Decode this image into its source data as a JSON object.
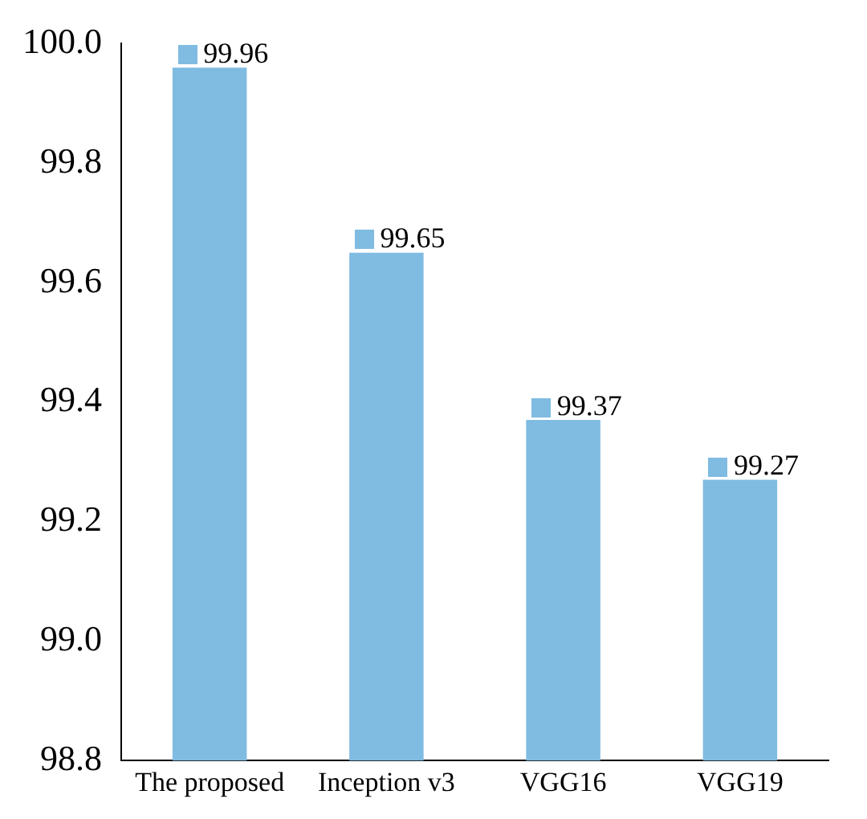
{
  "chart_data": {
    "type": "bar",
    "categories": [
      "The proposed",
      "Inception v3",
      "VGG16",
      "VGG19"
    ],
    "values": [
      99.96,
      99.65,
      99.37,
      99.27
    ],
    "color": "#80bbe2",
    "ylim": [
      98.8,
      100.0
    ],
    "yticks": [
      {
        "value": 98.8,
        "label": "98.8"
      },
      {
        "value": 99.0,
        "label": "99.0"
      },
      {
        "value": 99.2,
        "label": "99.2"
      },
      {
        "value": 99.4,
        "label": "99.4"
      },
      {
        "value": 99.6,
        "label": "99.6"
      },
      {
        "value": 99.8,
        "label": "99.8"
      },
      {
        "value": 100.0,
        "label": "100.0"
      }
    ],
    "grid": false,
    "data_labels": true,
    "legend": false
  }
}
